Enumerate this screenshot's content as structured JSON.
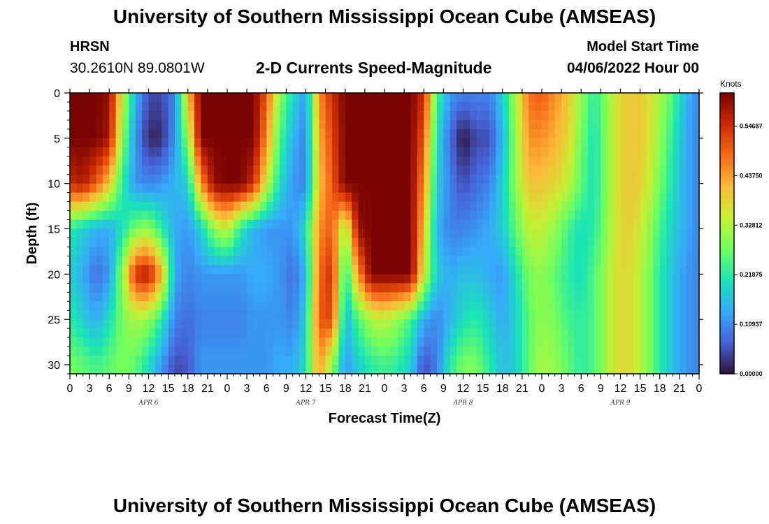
{
  "header": {
    "title": "University of Southern Mississippi Ocean Cube (AMSEAS)",
    "station": "HRSN",
    "coords": "30.2610N  89.0801W",
    "subtitle": "2-D Currents Speed-Magnitude",
    "model_start_label": "Model Start Time",
    "model_start_date": "04/06/2022 Hour 00"
  },
  "footer": {
    "title_repeat": "University of Southern Mississippi Ocean Cube (AMSEAS)"
  },
  "chart_data": {
    "type": "heatmap",
    "xlabel": "Forecast Time(Z)",
    "ylabel": "Depth (ft)",
    "x_tick_labels": [
      "0",
      "3",
      "6",
      "9",
      "12",
      "15",
      "18",
      "21",
      "0",
      "3",
      "6",
      "9",
      "12",
      "15",
      "18",
      "21",
      "0",
      "3",
      "6",
      "9",
      "12",
      "15",
      "18",
      "21",
      "0",
      "3",
      "6",
      "9",
      "12",
      "15",
      "18",
      "21",
      "0"
    ],
    "date_labels": [
      "APR 6",
      "APR 7",
      "APR 8",
      "APR 9"
    ],
    "y_ticks": [
      0,
      5,
      10,
      15,
      20,
      25,
      30
    ],
    "ylim": [
      0,
      31
    ],
    "xlim_hours": [
      0,
      96
    ],
    "colorbar": {
      "unit": "Knots",
      "ticks": [
        "0.00000",
        "0.10937",
        "0.21875",
        "0.32812",
        "0.43750",
        "0.54687"
      ],
      "range": [
        0,
        0.62
      ],
      "colors": [
        "#30123b",
        "#4662d7",
        "#36aaf9",
        "#1ae4b6",
        "#72fe5e",
        "#c7ef34",
        "#faba39",
        "#f66b19",
        "#ca2a04",
        "#7a0403"
      ]
    },
    "grid": false,
    "x_hours": [
      0,
      2,
      4,
      6,
      8,
      10,
      12,
      14,
      16,
      18,
      20,
      22,
      24,
      26,
      28,
      30,
      32,
      34,
      36,
      38,
      40,
      42,
      44,
      46,
      48,
      50,
      52,
      54,
      56,
      58,
      60,
      62,
      64,
      66,
      68,
      70,
      72,
      74,
      76,
      78,
      80,
      82,
      84,
      86,
      88,
      90,
      92,
      94,
      96
    ],
    "depth_ft": [
      0,
      5,
      10,
      15,
      20,
      25,
      30
    ],
    "speed_knots": [
      [
        0.62,
        0.62,
        0.62,
        0.6,
        0.35,
        0.15,
        0.05,
        0.05,
        0.1,
        0.4,
        0.62,
        0.62,
        0.62,
        0.62,
        0.62,
        0.5,
        0.3,
        0.2,
        0.12,
        0.45,
        0.55,
        0.62,
        0.62,
        0.62,
        0.62,
        0.62,
        0.62,
        0.55,
        0.25,
        0.12,
        0.1,
        0.1,
        0.1,
        0.18,
        0.32,
        0.48,
        0.5,
        0.45,
        0.4,
        0.3,
        0.22,
        0.3,
        0.38,
        0.4,
        0.38,
        0.32,
        0.25,
        0.15,
        0.1
      ],
      [
        0.62,
        0.62,
        0.62,
        0.58,
        0.3,
        0.12,
        0.02,
        0.02,
        0.12,
        0.3,
        0.62,
        0.62,
        0.62,
        0.62,
        0.62,
        0.45,
        0.25,
        0.15,
        0.1,
        0.42,
        0.52,
        0.62,
        0.62,
        0.62,
        0.62,
        0.62,
        0.62,
        0.5,
        0.2,
        0.08,
        0.0,
        0.05,
        0.05,
        0.15,
        0.3,
        0.45,
        0.45,
        0.42,
        0.38,
        0.28,
        0.2,
        0.3,
        0.38,
        0.4,
        0.38,
        0.3,
        0.22,
        0.14,
        0.1
      ],
      [
        0.55,
        0.58,
        0.5,
        0.4,
        0.22,
        0.12,
        0.1,
        0.12,
        0.15,
        0.18,
        0.45,
        0.6,
        0.62,
        0.62,
        0.55,
        0.35,
        0.2,
        0.12,
        0.1,
        0.4,
        0.5,
        0.62,
        0.62,
        0.62,
        0.62,
        0.62,
        0.62,
        0.45,
        0.18,
        0.1,
        0.05,
        0.08,
        0.1,
        0.18,
        0.3,
        0.4,
        0.4,
        0.38,
        0.34,
        0.26,
        0.2,
        0.3,
        0.38,
        0.4,
        0.36,
        0.28,
        0.2,
        0.14,
        0.1
      ],
      [
        0.22,
        0.18,
        0.15,
        0.14,
        0.2,
        0.28,
        0.3,
        0.22,
        0.14,
        0.12,
        0.18,
        0.3,
        0.35,
        0.22,
        0.15,
        0.12,
        0.12,
        0.12,
        0.2,
        0.45,
        0.5,
        0.3,
        0.6,
        0.62,
        0.62,
        0.62,
        0.62,
        0.4,
        0.15,
        0.1,
        0.1,
        0.12,
        0.14,
        0.18,
        0.26,
        0.34,
        0.34,
        0.3,
        0.24,
        0.2,
        0.22,
        0.3,
        0.38,
        0.38,
        0.32,
        0.24,
        0.18,
        0.14,
        0.1
      ],
      [
        0.18,
        0.14,
        0.08,
        0.12,
        0.3,
        0.55,
        0.58,
        0.42,
        0.14,
        0.1,
        0.12,
        0.12,
        0.12,
        0.12,
        0.14,
        0.14,
        0.12,
        0.08,
        0.15,
        0.48,
        0.55,
        0.2,
        0.45,
        0.62,
        0.62,
        0.62,
        0.62,
        0.35,
        0.18,
        0.14,
        0.16,
        0.16,
        0.14,
        0.12,
        0.2,
        0.28,
        0.3,
        0.26,
        0.22,
        0.2,
        0.25,
        0.32,
        0.38,
        0.36,
        0.3,
        0.22,
        0.16,
        0.12,
        0.1
      ],
      [
        0.22,
        0.18,
        0.14,
        0.2,
        0.28,
        0.32,
        0.3,
        0.22,
        0.1,
        0.08,
        0.1,
        0.1,
        0.1,
        0.1,
        0.12,
        0.12,
        0.12,
        0.1,
        0.18,
        0.5,
        0.52,
        0.15,
        0.25,
        0.32,
        0.34,
        0.3,
        0.24,
        0.14,
        0.1,
        0.15,
        0.2,
        0.22,
        0.18,
        0.14,
        0.18,
        0.26,
        0.3,
        0.28,
        0.24,
        0.22,
        0.25,
        0.32,
        0.38,
        0.36,
        0.3,
        0.22,
        0.16,
        0.12,
        0.1
      ],
      [
        0.28,
        0.26,
        0.24,
        0.26,
        0.28,
        0.26,
        0.2,
        0.12,
        0.05,
        0.06,
        0.12,
        0.12,
        0.12,
        0.12,
        0.12,
        0.12,
        0.14,
        0.14,
        0.2,
        0.45,
        0.3,
        0.12,
        0.18,
        0.22,
        0.24,
        0.22,
        0.18,
        0.05,
        0.1,
        0.22,
        0.28,
        0.28,
        0.22,
        0.16,
        0.18,
        0.26,
        0.32,
        0.3,
        0.26,
        0.22,
        0.25,
        0.32,
        0.38,
        0.36,
        0.3,
        0.22,
        0.16,
        0.12,
        0.1
      ]
    ]
  }
}
